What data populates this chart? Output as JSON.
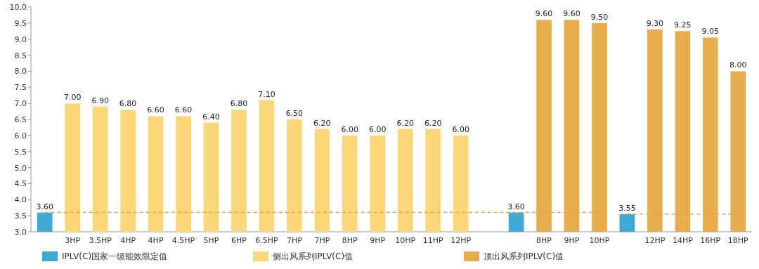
{
  "chart_data": {
    "type": "bar",
    "categories": [
      null,
      "3HP",
      "3.5HP",
      "4HP",
      "4HP",
      "4.5HP",
      "5HP",
      "6HP",
      "6.5HP",
      "7HP",
      "7HP",
      "8HP",
      "9HP",
      "10HP",
      "11HP",
      "12HP",
      null,
      null,
      "8HP",
      "9HP",
      "10HP",
      null,
      "12HP",
      "14HP",
      "16HP",
      "18HP"
    ],
    "series": [
      {
        "name": "IPLV(C)国家一级能效限定值",
        "color": "#3fa9d5",
        "values": [
          3.6,
          null,
          null,
          null,
          null,
          null,
          null,
          null,
          null,
          null,
          null,
          null,
          null,
          null,
          null,
          null,
          null,
          3.6,
          null,
          null,
          null,
          3.55,
          null,
          null,
          null,
          null
        ],
        "value_labels": [
          "3.60",
          null,
          null,
          null,
          null,
          null,
          null,
          null,
          null,
          null,
          null,
          null,
          null,
          null,
          null,
          null,
          null,
          "3.60",
          null,
          null,
          null,
          "3.55",
          null,
          null,
          null,
          null
        ]
      },
      {
        "name": "侧出风系列IPLV(C)值",
        "color": "#fbd77a",
        "values": [
          null,
          7.0,
          6.9,
          6.8,
          6.6,
          6.6,
          6.4,
          6.8,
          7.1,
          6.5,
          6.2,
          6.0,
          6.0,
          6.2,
          6.2,
          6.0,
          null,
          null,
          null,
          null,
          null,
          null,
          null,
          null,
          null,
          null
        ],
        "value_labels": [
          null,
          "7.00",
          "6.90",
          "6.80",
          "6.60",
          "6.60",
          "6.40",
          "6.80",
          "7.10",
          "6.50",
          "6.20",
          "6.00",
          "6.00",
          "6.20",
          "6.20",
          "6.00",
          null,
          null,
          null,
          null,
          null,
          null,
          null,
          null,
          null,
          null
        ]
      },
      {
        "name": "顶出风系列IPLV(C)值",
        "color": "#e8ad4d",
        "values": [
          null,
          null,
          null,
          null,
          null,
          null,
          null,
          null,
          null,
          null,
          null,
          null,
          null,
          null,
          null,
          null,
          null,
          null,
          9.6,
          9.6,
          9.5,
          null,
          9.3,
          9.25,
          9.05,
          8.0
        ],
        "value_labels": [
          null,
          null,
          null,
          null,
          null,
          null,
          null,
          null,
          null,
          null,
          null,
          null,
          null,
          null,
          null,
          null,
          null,
          null,
          "9.60",
          "9.60",
          "9.50",
          null,
          "9.30",
          "9.25",
          "9.05",
          "8.00"
        ]
      },
      {
        "type": "line",
        "line_style": "dashed",
        "color": "#f0a030",
        "values": [
          3.6,
          3.6,
          3.6,
          3.6,
          3.6,
          3.6,
          3.6,
          3.6,
          3.6,
          3.6,
          3.6,
          3.6,
          3.6,
          3.6,
          3.6,
          3.6,
          3.6,
          3.6,
          3.6,
          3.6,
          3.6,
          null,
          null,
          null,
          null,
          null
        ]
      },
      {
        "type": "line",
        "line_style": "dashed",
        "color": "#f0a030",
        "values": [
          null,
          null,
          null,
          null,
          null,
          null,
          null,
          null,
          null,
          null,
          null,
          null,
          null,
          null,
          null,
          null,
          null,
          null,
          null,
          null,
          null,
          3.55,
          3.55,
          3.55,
          3.55,
          3.55
        ]
      }
    ],
    "ylim": [
      3.0,
      10.0
    ],
    "yticks": [
      {
        "value": 3.0,
        "label": "3.0"
      },
      {
        "value": 3.5,
        "label": "3.5"
      },
      {
        "value": 4.0,
        "label": "4.0"
      },
      {
        "value": 4.5,
        "label": "4.5"
      },
      {
        "value": 5.0,
        "label": "5.0"
      },
      {
        "value": 5.5,
        "label": "5.5"
      },
      {
        "value": 6.0,
        "label": "6.0"
      },
      {
        "value": 6.5,
        "label": "6.5"
      },
      {
        "value": 7.0,
        "label": "7.0"
      },
      {
        "value": 7.5,
        "label": "7.5"
      },
      {
        "value": 8.0,
        "label": "8.0"
      },
      {
        "value": 8.5,
        "label": "8.5"
      },
      {
        "value": 9.0,
        "label": "9.0"
      },
      {
        "value": 9.5,
        "label": "9.5"
      },
      {
        "value": 10.0,
        "label": "10.0"
      }
    ],
    "legend": "bottom"
  }
}
